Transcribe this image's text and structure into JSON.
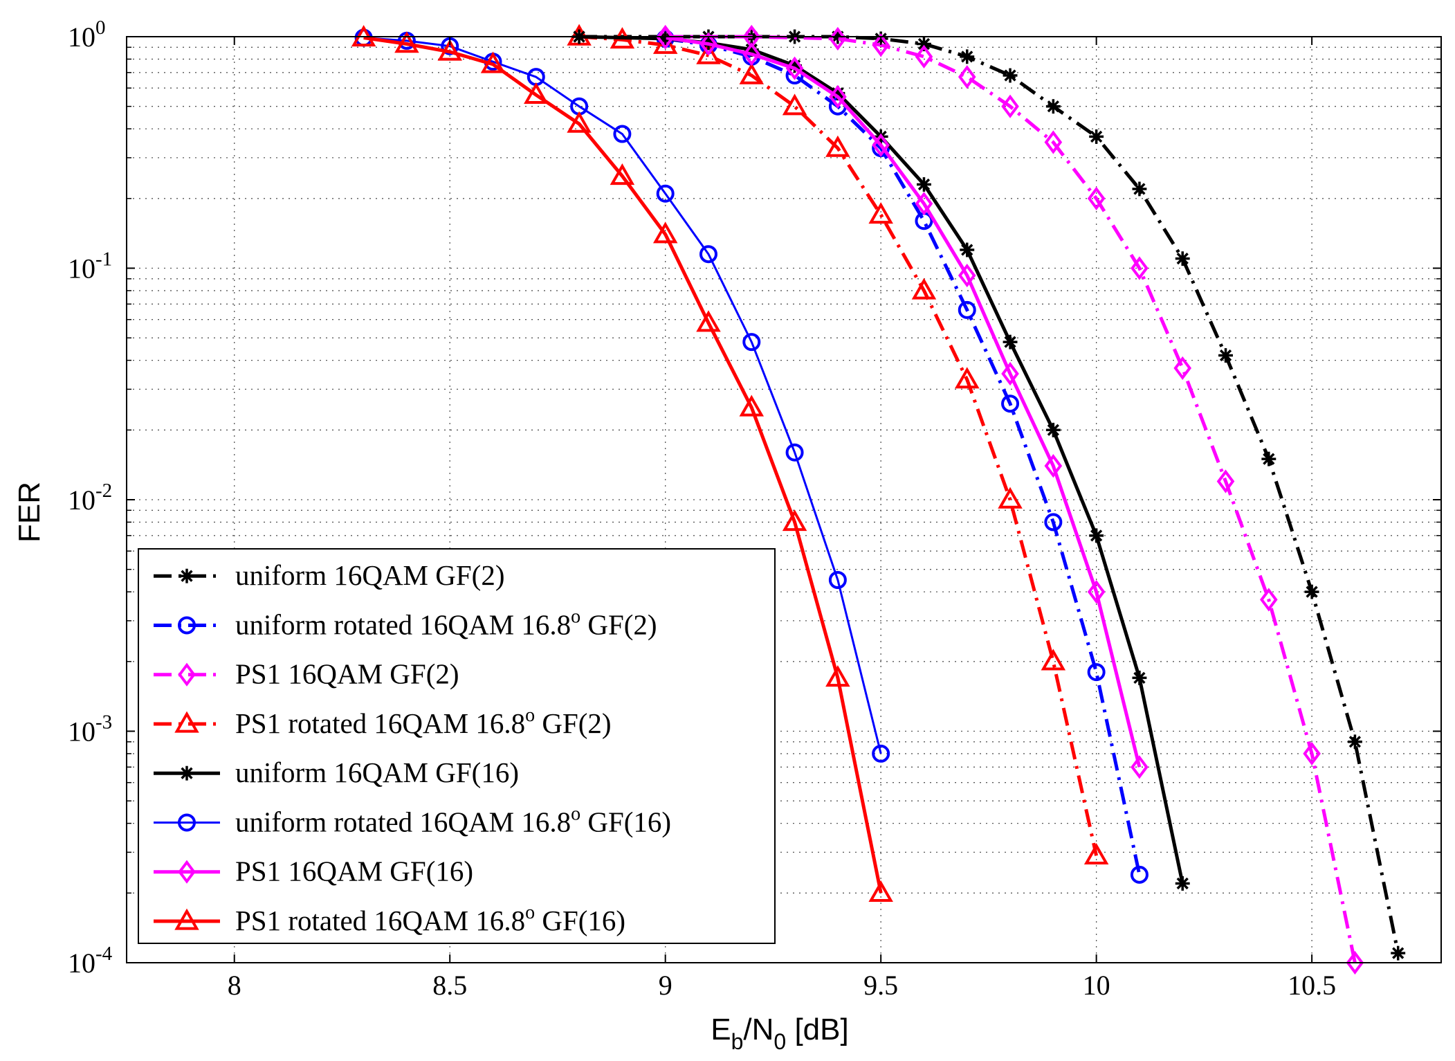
{
  "chart_data": {
    "type": "line",
    "title": "",
    "xlabel_main": "E",
    "xlabel_sub1": "b",
    "xlabel_mid": "/N",
    "xlabel_sub2": "0",
    "xlabel_tail": " [dB]",
    "ylabel": "FER",
    "xlim": [
      7.75,
      10.8
    ],
    "ylim": [
      0.0001,
      1
    ],
    "yscale": "log",
    "grid": true,
    "legend_position": "bottom-left",
    "xticks": [
      8,
      8.5,
      9,
      9.5,
      10,
      10.5
    ],
    "xtick_labels": [
      "8",
      "8.5",
      "9",
      "9.5",
      "10",
      "10.5"
    ],
    "yticks": [
      1,
      0.1,
      0.01,
      0.001,
      0.0001
    ],
    "ytick_base": "10",
    "ytick_exponents": [
      "0",
      "-1",
      "-2",
      "-3",
      "-4"
    ],
    "series": [
      {
        "name": "uniform 16QAM GF(2)",
        "color": "#000000",
        "dash": "dashdot",
        "marker": "star",
        "width": 5,
        "x": [
          8.8,
          9.0,
          9.1,
          9.2,
          9.3,
          9.4,
          9.5,
          9.6,
          9.7,
          9.8,
          9.9,
          10.0,
          10.1,
          10.2,
          10.3,
          10.4,
          10.5,
          10.6,
          10.7
        ],
        "y": [
          1.0,
          1.0,
          1.0,
          1.0,
          1.0,
          1.0,
          0.98,
          0.93,
          0.82,
          0.68,
          0.5,
          0.37,
          0.22,
          0.11,
          0.042,
          0.015,
          0.004,
          0.0009,
          0.00011
        ]
      },
      {
        "name": "uniform rotated 16QAM  16.8",
        "name_sup": "o",
        "name_tail": " GF(2)",
        "color": "#0000ff",
        "dash": "dashdot",
        "marker": "circle",
        "width": 5,
        "x": [
          9.0,
          9.1,
          9.2,
          9.3,
          9.4,
          9.5,
          9.6,
          9.7,
          9.8,
          9.9,
          10.0,
          10.1
        ],
        "y": [
          0.98,
          0.92,
          0.82,
          0.68,
          0.5,
          0.33,
          0.16,
          0.066,
          0.026,
          0.008,
          0.0018,
          0.00024
        ]
      },
      {
        "name": "PS1 16QAM  GF(2)",
        "color": "#ff00ff",
        "dash": "dashdot",
        "marker": "diamond",
        "width": 5,
        "x": [
          9.0,
          9.2,
          9.4,
          9.5,
          9.6,
          9.7,
          9.8,
          9.9,
          10.0,
          10.1,
          10.2,
          10.3,
          10.4,
          10.5,
          10.6
        ],
        "y": [
          1.0,
          1.0,
          0.98,
          0.92,
          0.82,
          0.67,
          0.5,
          0.35,
          0.2,
          0.1,
          0.037,
          0.012,
          0.0037,
          0.0008,
          0.0001
        ]
      },
      {
        "name": "PS1 rotated 16QAM  16.8",
        "name_sup": "o",
        "name_tail": " GF(2)",
        "color": "#ff0000",
        "dash": "dashdot",
        "marker": "triangle",
        "width": 5,
        "x": [
          8.8,
          8.9,
          9.0,
          9.1,
          9.2,
          9.3,
          9.4,
          9.5,
          9.6,
          9.7,
          9.8,
          9.9,
          10.0
        ],
        "y": [
          1.0,
          0.97,
          0.92,
          0.83,
          0.68,
          0.5,
          0.33,
          0.17,
          0.08,
          0.033,
          0.01,
          0.002,
          0.00029
        ]
      },
      {
        "name": "uniform 16QAM GF(16)",
        "color": "#000000",
        "dash": "solid",
        "marker": "star",
        "width": 5,
        "x": [
          8.8,
          9.0,
          9.1,
          9.2,
          9.3,
          9.4,
          9.5,
          9.6,
          9.7,
          9.8,
          9.9,
          10.0,
          10.1,
          10.2
        ],
        "y": [
          1.0,
          0.98,
          0.94,
          0.88,
          0.75,
          0.57,
          0.37,
          0.23,
          0.12,
          0.048,
          0.02,
          0.007,
          0.0017,
          0.00022
        ]
      },
      {
        "name": "uniform rotated 16QAM  16.8",
        "name_sup": "o",
        "name_tail": " GF(16)",
        "color": "#0000ff",
        "dash": "solid",
        "marker": "circle",
        "width": 3,
        "x": [
          8.3,
          8.4,
          8.5,
          8.6,
          8.7,
          8.8,
          8.9,
          9.0,
          9.1,
          9.2,
          9.3,
          9.4,
          9.5
        ],
        "y": [
          0.99,
          0.96,
          0.91,
          0.78,
          0.67,
          0.5,
          0.38,
          0.21,
          0.115,
          0.048,
          0.016,
          0.0045,
          0.0008
        ]
      },
      {
        "name": "PS1 16QAM  GF(16)",
        "color": "#ff00ff",
        "dash": "solid",
        "marker": "diamond",
        "width": 5,
        "x": [
          9.0,
          9.1,
          9.2,
          9.3,
          9.4,
          9.5,
          9.6,
          9.7,
          9.8,
          9.9,
          10.0,
          10.1
        ],
        "y": [
          0.99,
          0.93,
          0.84,
          0.73,
          0.55,
          0.34,
          0.19,
          0.093,
          0.035,
          0.014,
          0.004,
          0.0007
        ]
      },
      {
        "name": "PS1 rotated 16QAM  16.8",
        "name_sup": "o",
        "name_tail": " GF(16)",
        "color": "#ff0000",
        "dash": "solid",
        "marker": "triangle",
        "width": 5,
        "x": [
          8.3,
          8.4,
          8.5,
          8.6,
          8.7,
          8.8,
          8.9,
          9.0,
          9.1,
          9.2,
          9.3,
          9.4,
          9.5
        ],
        "y": [
          0.99,
          0.93,
          0.86,
          0.76,
          0.56,
          0.42,
          0.25,
          0.14,
          0.058,
          0.025,
          0.008,
          0.0017,
          0.0002
        ]
      }
    ]
  }
}
